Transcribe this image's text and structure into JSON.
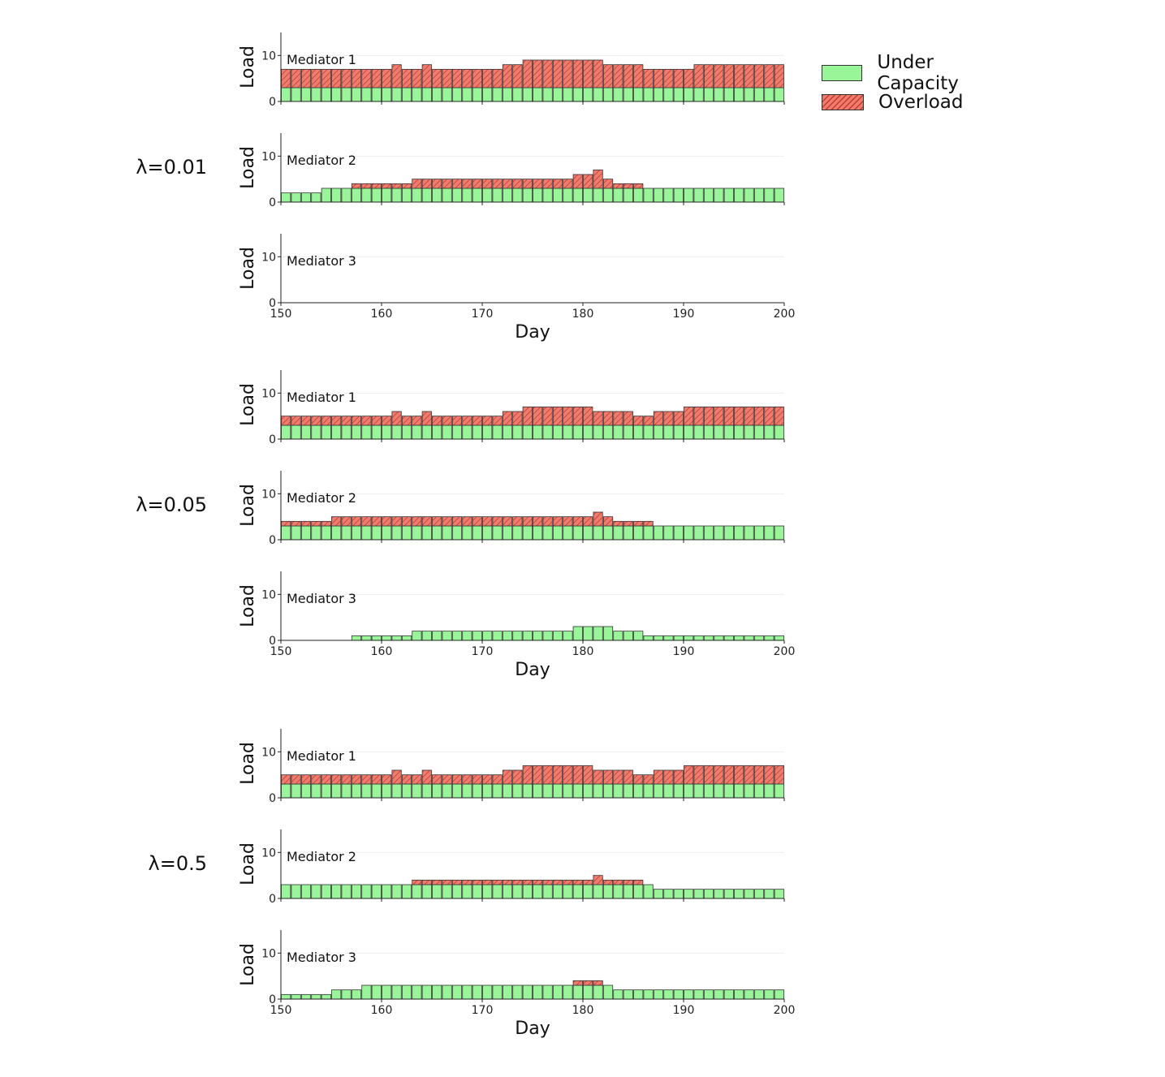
{
  "chart_data": {
    "type": "bar",
    "stacked": true,
    "x_range": [
      150,
      200
    ],
    "x_ticks": [
      "150",
      "160",
      "170",
      "180",
      "190",
      "200"
    ],
    "y_ticks": [
      "0",
      "10"
    ],
    "ylim": [
      0,
      15
    ],
    "xlabel": "Day",
    "ylabel": "Load",
    "day_start": 150,
    "legend": {
      "position": "top-right",
      "under_label": "Under Capacity",
      "over_label": "Overload",
      "under_color": "#98f598",
      "over_color": "#f07c6e",
      "hatch_color": "#c23b2d"
    },
    "groups": [
      {
        "label": "λ=0.01",
        "panels": [
          {
            "name": "Mediator 1",
            "under": [
              3,
              3,
              3,
              3,
              3,
              3,
              3,
              3,
              3,
              3,
              3,
              3,
              3,
              3,
              3,
              3,
              3,
              3,
              3,
              3,
              3,
              3,
              3,
              3,
              3,
              3,
              3,
              3,
              3,
              3,
              3,
              3,
              3,
              3,
              3,
              3,
              3,
              3,
              3,
              3,
              3,
              3,
              3,
              3,
              3,
              3,
              3,
              3,
              3,
              3
            ],
            "over": [
              4,
              4,
              4,
              4,
              4,
              4,
              4,
              4,
              4,
              4,
              4,
              5,
              4,
              4,
              5,
              4,
              4,
              4,
              4,
              4,
              4,
              4,
              5,
              5,
              6,
              6,
              6,
              6,
              6,
              6,
              6,
              6,
              5,
              5,
              5,
              5,
              4,
              4,
              4,
              4,
              4,
              5,
              5,
              5,
              5,
              5,
              5,
              5,
              5,
              5
            ]
          },
          {
            "name": "Mediator 2",
            "under": [
              2,
              2,
              2,
              2,
              3,
              3,
              3,
              3,
              3,
              3,
              3,
              3,
              3,
              3,
              3,
              3,
              3,
              3,
              3,
              3,
              3,
              3,
              3,
              3,
              3,
              3,
              3,
              3,
              3,
              3,
              3,
              3,
              3,
              3,
              3,
              3,
              3,
              3,
              3,
              3,
              3,
              3,
              3,
              3,
              3,
              3,
              3,
              3,
              3,
              3
            ],
            "over": [
              0,
              0,
              0,
              0,
              0,
              0,
              0,
              1,
              1,
              1,
              1,
              1,
              1,
              2,
              2,
              2,
              2,
              2,
              2,
              2,
              2,
              2,
              2,
              2,
              2,
              2,
              2,
              2,
              2,
              3,
              3,
              4,
              2,
              1,
              1,
              1,
              0,
              0,
              0,
              0,
              0,
              0,
              0,
              0,
              0,
              0,
              0,
              0,
              0,
              0
            ]
          },
          {
            "name": "Mediator 3",
            "under": [
              0,
              0,
              0,
              0,
              0,
              0,
              0,
              0,
              0,
              0,
              0,
              0,
              0,
              0,
              0,
              0,
              0,
              0,
              0,
              0,
              0,
              0,
              0,
              0,
              0,
              0,
              0,
              0,
              0,
              0,
              0,
              0,
              0,
              0,
              0,
              0,
              0,
              0,
              0,
              0,
              0,
              0,
              0,
              0,
              0,
              0,
              0,
              0,
              0,
              0
            ],
            "over": [
              0,
              0,
              0,
              0,
              0,
              0,
              0,
              0,
              0,
              0,
              0,
              0,
              0,
              0,
              0,
              0,
              0,
              0,
              0,
              0,
              0,
              0,
              0,
              0,
              0,
              0,
              0,
              0,
              0,
              0,
              0,
              0,
              0,
              0,
              0,
              0,
              0,
              0,
              0,
              0,
              0,
              0,
              0,
              0,
              0,
              0,
              0,
              0,
              0,
              0
            ]
          }
        ]
      },
      {
        "label": "λ=0.05",
        "panels": [
          {
            "name": "Mediator 1",
            "under": [
              3,
              3,
              3,
              3,
              3,
              3,
              3,
              3,
              3,
              3,
              3,
              3,
              3,
              3,
              3,
              3,
              3,
              3,
              3,
              3,
              3,
              3,
              3,
              3,
              3,
              3,
              3,
              3,
              3,
              3,
              3,
              3,
              3,
              3,
              3,
              3,
              3,
              3,
              3,
              3,
              3,
              3,
              3,
              3,
              3,
              3,
              3,
              3,
              3,
              3
            ],
            "over": [
              2,
              2,
              2,
              2,
              2,
              2,
              2,
              2,
              2,
              2,
              2,
              3,
              2,
              2,
              3,
              2,
              2,
              2,
              2,
              2,
              2,
              2,
              3,
              3,
              4,
              4,
              4,
              4,
              4,
              4,
              4,
              3,
              3,
              3,
              3,
              2,
              2,
              3,
              3,
              3,
              4,
              4,
              4,
              4,
              4,
              4,
              4,
              4,
              4,
              4
            ]
          },
          {
            "name": "Mediator 2",
            "under": [
              3,
              3,
              3,
              3,
              3,
              3,
              3,
              3,
              3,
              3,
              3,
              3,
              3,
              3,
              3,
              3,
              3,
              3,
              3,
              3,
              3,
              3,
              3,
              3,
              3,
              3,
              3,
              3,
              3,
              3,
              3,
              3,
              3,
              3,
              3,
              3,
              3,
              3,
              3,
              3,
              3,
              3,
              3,
              3,
              3,
              3,
              3,
              3,
              3,
              3
            ],
            "over": [
              1,
              1,
              1,
              1,
              1,
              2,
              2,
              2,
              2,
              2,
              2,
              2,
              2,
              2,
              2,
              2,
              2,
              2,
              2,
              2,
              2,
              2,
              2,
              2,
              2,
              2,
              2,
              2,
              2,
              2,
              2,
              3,
              2,
              1,
              1,
              1,
              1,
              0,
              0,
              0,
              0,
              0,
              0,
              0,
              0,
              0,
              0,
              0,
              0,
              0
            ]
          },
          {
            "name": "Mediator 3",
            "under": [
              0,
              0,
              0,
              0,
              0,
              0,
              0,
              1,
              1,
              1,
              1,
              1,
              1,
              2,
              2,
              2,
              2,
              2,
              2,
              2,
              2,
              2,
              2,
              2,
              2,
              2,
              2,
              2,
              2,
              3,
              3,
              3,
              3,
              2,
              2,
              2,
              1,
              1,
              1,
              1,
              1,
              1,
              1,
              1,
              1,
              1,
              1,
              1,
              1,
              1
            ],
            "over": [
              0,
              0,
              0,
              0,
              0,
              0,
              0,
              0,
              0,
              0,
              0,
              0,
              0,
              0,
              0,
              0,
              0,
              0,
              0,
              0,
              0,
              0,
              0,
              0,
              0,
              0,
              0,
              0,
              0,
              0,
              0,
              0,
              0,
              0,
              0,
              0,
              0,
              0,
              0,
              0,
              0,
              0,
              0,
              0,
              0,
              0,
              0,
              0,
              0,
              0
            ]
          }
        ]
      },
      {
        "label": "λ=0.5",
        "panels": [
          {
            "name": "Mediator 1",
            "under": [
              3,
              3,
              3,
              3,
              3,
              3,
              3,
              3,
              3,
              3,
              3,
              3,
              3,
              3,
              3,
              3,
              3,
              3,
              3,
              3,
              3,
              3,
              3,
              3,
              3,
              3,
              3,
              3,
              3,
              3,
              3,
              3,
              3,
              3,
              3,
              3,
              3,
              3,
              3,
              3,
              3,
              3,
              3,
              3,
              3,
              3,
              3,
              3,
              3,
              3
            ],
            "over": [
              2,
              2,
              2,
              2,
              2,
              2,
              2,
              2,
              2,
              2,
              2,
              3,
              2,
              2,
              3,
              2,
              2,
              2,
              2,
              2,
              2,
              2,
              3,
              3,
              4,
              4,
              4,
              4,
              4,
              4,
              4,
              3,
              3,
              3,
              3,
              2,
              2,
              3,
              3,
              3,
              4,
              4,
              4,
              4,
              4,
              4,
              4,
              4,
              4,
              4
            ]
          },
          {
            "name": "Mediator 2",
            "under": [
              3,
              3,
              3,
              3,
              3,
              3,
              3,
              3,
              3,
              3,
              3,
              3,
              3,
              3,
              3,
              3,
              3,
              3,
              3,
              3,
              3,
              3,
              3,
              3,
              3,
              3,
              3,
              3,
              3,
              3,
              3,
              3,
              3,
              3,
              3,
              3,
              3,
              2,
              2,
              2,
              2,
              2,
              2,
              2,
              2,
              2,
              2,
              2,
              2,
              2
            ],
            "over": [
              0,
              0,
              0,
              0,
              0,
              0,
              0,
              0,
              0,
              0,
              0,
              0,
              0,
              1,
              1,
              1,
              1,
              1,
              1,
              1,
              1,
              1,
              1,
              1,
              1,
              1,
              1,
              1,
              1,
              1,
              1,
              2,
              1,
              1,
              1,
              1,
              0,
              0,
              0,
              0,
              0,
              0,
              0,
              0,
              0,
              0,
              0,
              0,
              0,
              0
            ]
          },
          {
            "name": "Mediator 3",
            "under": [
              1,
              1,
              1,
              1,
              1,
              2,
              2,
              2,
              3,
              3,
              3,
              3,
              3,
              3,
              3,
              3,
              3,
              3,
              3,
              3,
              3,
              3,
              3,
              3,
              3,
              3,
              3,
              3,
              3,
              3,
              3,
              3,
              3,
              2,
              2,
              2,
              2,
              2,
              2,
              2,
              2,
              2,
              2,
              2,
              2,
              2,
              2,
              2,
              2,
              2
            ],
            "over": [
              0,
              0,
              0,
              0,
              0,
              0,
              0,
              0,
              0,
              0,
              0,
              0,
              0,
              0,
              0,
              0,
              0,
              0,
              0,
              0,
              0,
              0,
              0,
              0,
              0,
              0,
              0,
              0,
              0,
              1,
              1,
              1,
              0,
              0,
              0,
              0,
              0,
              0,
              0,
              0,
              0,
              0,
              0,
              0,
              0,
              0,
              0,
              0,
              0,
              0
            ]
          }
        ]
      }
    ]
  }
}
